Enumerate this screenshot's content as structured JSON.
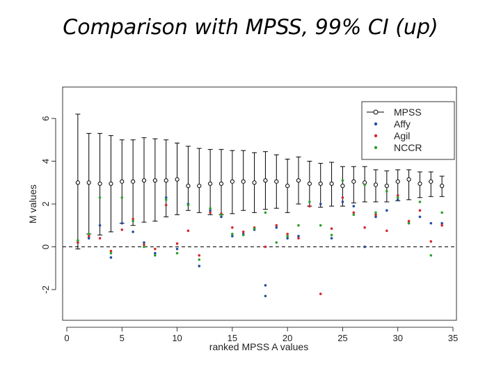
{
  "slide": {
    "title": "Comparison with MPSS, 99% CI (up)"
  },
  "chart_data": {
    "type": "scatter",
    "title": "Comparison with MPSS, 99% CI (up)",
    "xlabel": "ranked MPSS A values",
    "ylabel": "M values",
    "xlim": [
      0,
      35
    ],
    "ylim": [
      -3.5,
      7.5
    ],
    "xticks": [
      0,
      5,
      10,
      15,
      20,
      25,
      30,
      35
    ],
    "yticks": [
      -2,
      0,
      2,
      4,
      6
    ],
    "reference_line": {
      "y": 0,
      "style": "dashed"
    },
    "legend": {
      "position": "top-right",
      "entries": [
        "MPSS",
        "Affy",
        "Agil",
        "NCCR"
      ]
    },
    "colors": {
      "MPSS": "#000000",
      "Affy": "#1f4fa0",
      "Agil": "#d62728",
      "NCCR": "#2ca02c"
    },
    "mpss": [
      {
        "x": 1,
        "y": 3.0,
        "lo": -0.1,
        "hi": 6.2
      },
      {
        "x": 2,
        "y": 3.0,
        "lo": 0.6,
        "hi": 5.3
      },
      {
        "x": 3,
        "y": 2.95,
        "lo": 0.55,
        "hi": 5.3
      },
      {
        "x": 4,
        "y": 2.95,
        "lo": 0.7,
        "hi": 5.2
      },
      {
        "x": 5,
        "y": 3.05,
        "lo": 1.1,
        "hi": 5.0
      },
      {
        "x": 6,
        "y": 3.05,
        "lo": 1.0,
        "hi": 5.0
      },
      {
        "x": 7,
        "y": 3.1,
        "lo": 1.15,
        "hi": 5.1
      },
      {
        "x": 8,
        "y": 3.1,
        "lo": 1.2,
        "hi": 5.05
      },
      {
        "x": 9,
        "y": 3.1,
        "lo": 1.4,
        "hi": 5.0
      },
      {
        "x": 10,
        "y": 3.15,
        "lo": 1.5,
        "hi": 4.85
      },
      {
        "x": 11,
        "y": 2.85,
        "lo": 1.7,
        "hi": 4.7
      },
      {
        "x": 12,
        "y": 2.85,
        "lo": 1.6,
        "hi": 4.6
      },
      {
        "x": 13,
        "y": 2.95,
        "lo": 1.5,
        "hi": 4.55
      },
      {
        "x": 14,
        "y": 2.95,
        "lo": 1.5,
        "hi": 4.55
      },
      {
        "x": 15,
        "y": 3.05,
        "lo": 1.55,
        "hi": 4.5
      },
      {
        "x": 16,
        "y": 3.05,
        "lo": 1.7,
        "hi": 4.5
      },
      {
        "x": 17,
        "y": 3.0,
        "lo": 1.6,
        "hi": 4.4
      },
      {
        "x": 18,
        "y": 3.1,
        "lo": 1.75,
        "hi": 4.45
      },
      {
        "x": 19,
        "y": 3.05,
        "lo": 1.8,
        "hi": 4.3
      },
      {
        "x": 20,
        "y": 2.85,
        "lo": 1.6,
        "hi": 4.1
      },
      {
        "x": 21,
        "y": 3.1,
        "lo": 2.0,
        "hi": 4.2
      },
      {
        "x": 22,
        "y": 2.95,
        "lo": 1.9,
        "hi": 4.0
      },
      {
        "x": 23,
        "y": 2.95,
        "lo": 1.85,
        "hi": 3.9
      },
      {
        "x": 24,
        "y": 2.95,
        "lo": 1.9,
        "hi": 3.95
      },
      {
        "x": 25,
        "y": 2.85,
        "lo": 1.9,
        "hi": 3.75
      },
      {
        "x": 26,
        "y": 3.05,
        "lo": 2.05,
        "hi": 3.75
      },
      {
        "x": 27,
        "y": 3.0,
        "lo": 2.1,
        "hi": 3.75
      },
      {
        "x": 28,
        "y": 2.9,
        "lo": 2.1,
        "hi": 3.6
      },
      {
        "x": 29,
        "y": 2.85,
        "lo": 2.1,
        "hi": 3.55
      },
      {
        "x": 30,
        "y": 3.05,
        "lo": 2.15,
        "hi": 3.6
      },
      {
        "x": 31,
        "y": 3.15,
        "lo": 2.2,
        "hi": 3.6
      },
      {
        "x": 32,
        "y": 2.95,
        "lo": 2.3,
        "hi": 3.5
      },
      {
        "x": 33,
        "y": 3.05,
        "lo": 2.35,
        "hi": 3.5
      },
      {
        "x": 34,
        "y": 2.85,
        "lo": 2.35,
        "hi": 3.3
      }
    ],
    "series": [
      {
        "name": "Affy",
        "x": [
          1,
          2,
          3,
          4,
          5,
          6,
          7,
          8,
          9,
          10,
          11,
          12,
          13,
          14,
          15,
          16,
          17,
          18,
          18,
          19,
          20,
          21,
          22,
          23,
          24,
          25,
          26,
          27,
          28,
          29,
          30,
          31,
          32,
          33,
          34
        ],
        "y": [
          0.2,
          0.4,
          1.0,
          -0.5,
          1.1,
          0.7,
          0.2,
          -0.3,
          2.3,
          -0.1,
          2.0,
          -0.9,
          1.7,
          1.4,
          0.5,
          0.6,
          0.8,
          -1.8,
          -2.3,
          0.9,
          0.4,
          0.5,
          1.9,
          2.0,
          0.4,
          2.1,
          1.9,
          0.0,
          1.4,
          1.7,
          2.2,
          1.1,
          1.4,
          1.1,
          1.1
        ]
      },
      {
        "name": "Agil",
        "x": [
          1,
          2,
          3,
          4,
          5,
          6,
          7,
          8,
          9,
          10,
          11,
          12,
          13,
          14,
          15,
          16,
          17,
          18,
          19,
          20,
          21,
          22,
          23,
          24,
          25,
          26,
          27,
          28,
          29,
          30,
          31,
          32,
          33,
          34
        ],
        "y": [
          0.2,
          0.5,
          0.4,
          -0.2,
          0.8,
          1.3,
          0.1,
          -0.1,
          1.95,
          0.15,
          0.75,
          -0.4,
          1.6,
          1.55,
          0.9,
          0.7,
          0.9,
          0.0,
          1.0,
          0.6,
          0.4,
          1.9,
          -2.2,
          0.85,
          2.3,
          1.6,
          0.9,
          1.5,
          0.75,
          2.4,
          1.2,
          1.7,
          0.25,
          1.0
        ]
      },
      {
        "name": "NCCR",
        "x": [
          1,
          2,
          3,
          4,
          5,
          6,
          7,
          8,
          9,
          10,
          11,
          12,
          13,
          14,
          15,
          16,
          17,
          18,
          19,
          20,
          21,
          22,
          23,
          24,
          25,
          26,
          27,
          28,
          29,
          30,
          31,
          32,
          33,
          34
        ],
        "y": [
          0.3,
          0.6,
          2.3,
          -0.3,
          2.3,
          1.2,
          0.0,
          -0.4,
          2.2,
          -0.3,
          1.95,
          -0.6,
          1.8,
          1.5,
          0.6,
          0.55,
          0.85,
          1.6,
          0.2,
          0.5,
          1.0,
          2.1,
          1.0,
          0.55,
          3.1,
          1.5,
          2.9,
          1.6,
          2.6,
          2.3,
          1.1,
          2.1,
          -0.4,
          1.6
        ]
      }
    ]
  }
}
